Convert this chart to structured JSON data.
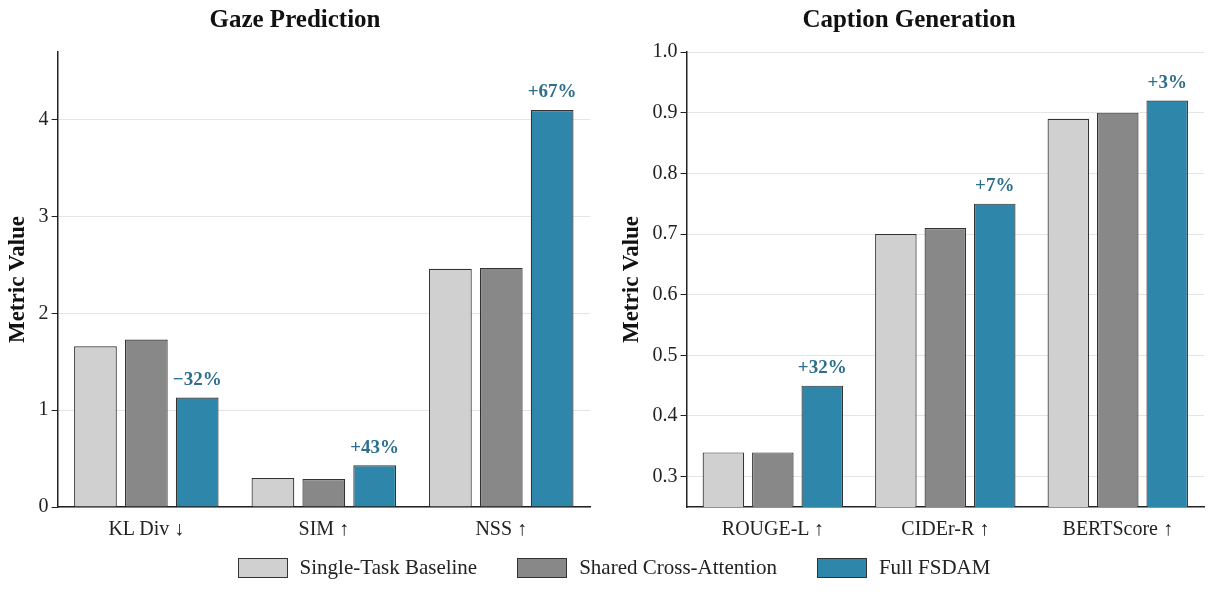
{
  "chart_data": [
    {
      "type": "bar",
      "title": "Gaze Prediction",
      "ylabel": "Metric Value",
      "categories": [
        "KL Div ↓",
        "SIM ↑",
        "NSS ↑"
      ],
      "series": [
        {
          "name": "Single-Task Baseline",
          "color": "#d0d0d0",
          "values": [
            1.66,
            0.3,
            2.46
          ]
        },
        {
          "name": "Shared Cross-Attention",
          "color": "#888888",
          "values": [
            1.73,
            0.29,
            2.47
          ]
        },
        {
          "name": "Full FSDAM",
          "color": "#2e86ab",
          "values": [
            1.13,
            0.43,
            4.1
          ]
        }
      ],
      "ylim": [
        0,
        4.7
      ],
      "yticks": [
        0,
        1,
        2,
        3,
        4
      ],
      "grid": "y",
      "legend": "bottom",
      "annotations": [
        "−32%",
        "+43%",
        "+67%"
      ]
    },
    {
      "type": "bar",
      "title": "Caption Generation",
      "ylabel": "Metric Value",
      "categories": [
        "ROUGE-L ↑",
        "CIDEr-R ↑",
        "BERTScore ↑"
      ],
      "series": [
        {
          "color": "#d0d0d0",
          "values": [
            0.34,
            0.7,
            0.89
          ]
        },
        {
          "color": "#888888",
          "values": [
            0.34,
            0.71,
            0.9
          ]
        },
        {
          "color": "#2e86ab",
          "values": [
            0.45,
            0.75,
            0.92
          ]
        }
      ],
      "ylim": [
        0.25,
        1.0
      ],
      "yticks": [
        0.3,
        0.4,
        0.5,
        0.6,
        0.7,
        0.8,
        0.9,
        {
          "value": 1.0,
          "label": "1.0"
        }
      ],
      "grid": "y",
      "annotations": [
        "+32%",
        "+7%",
        "+3%"
      ]
    }
  ]
}
